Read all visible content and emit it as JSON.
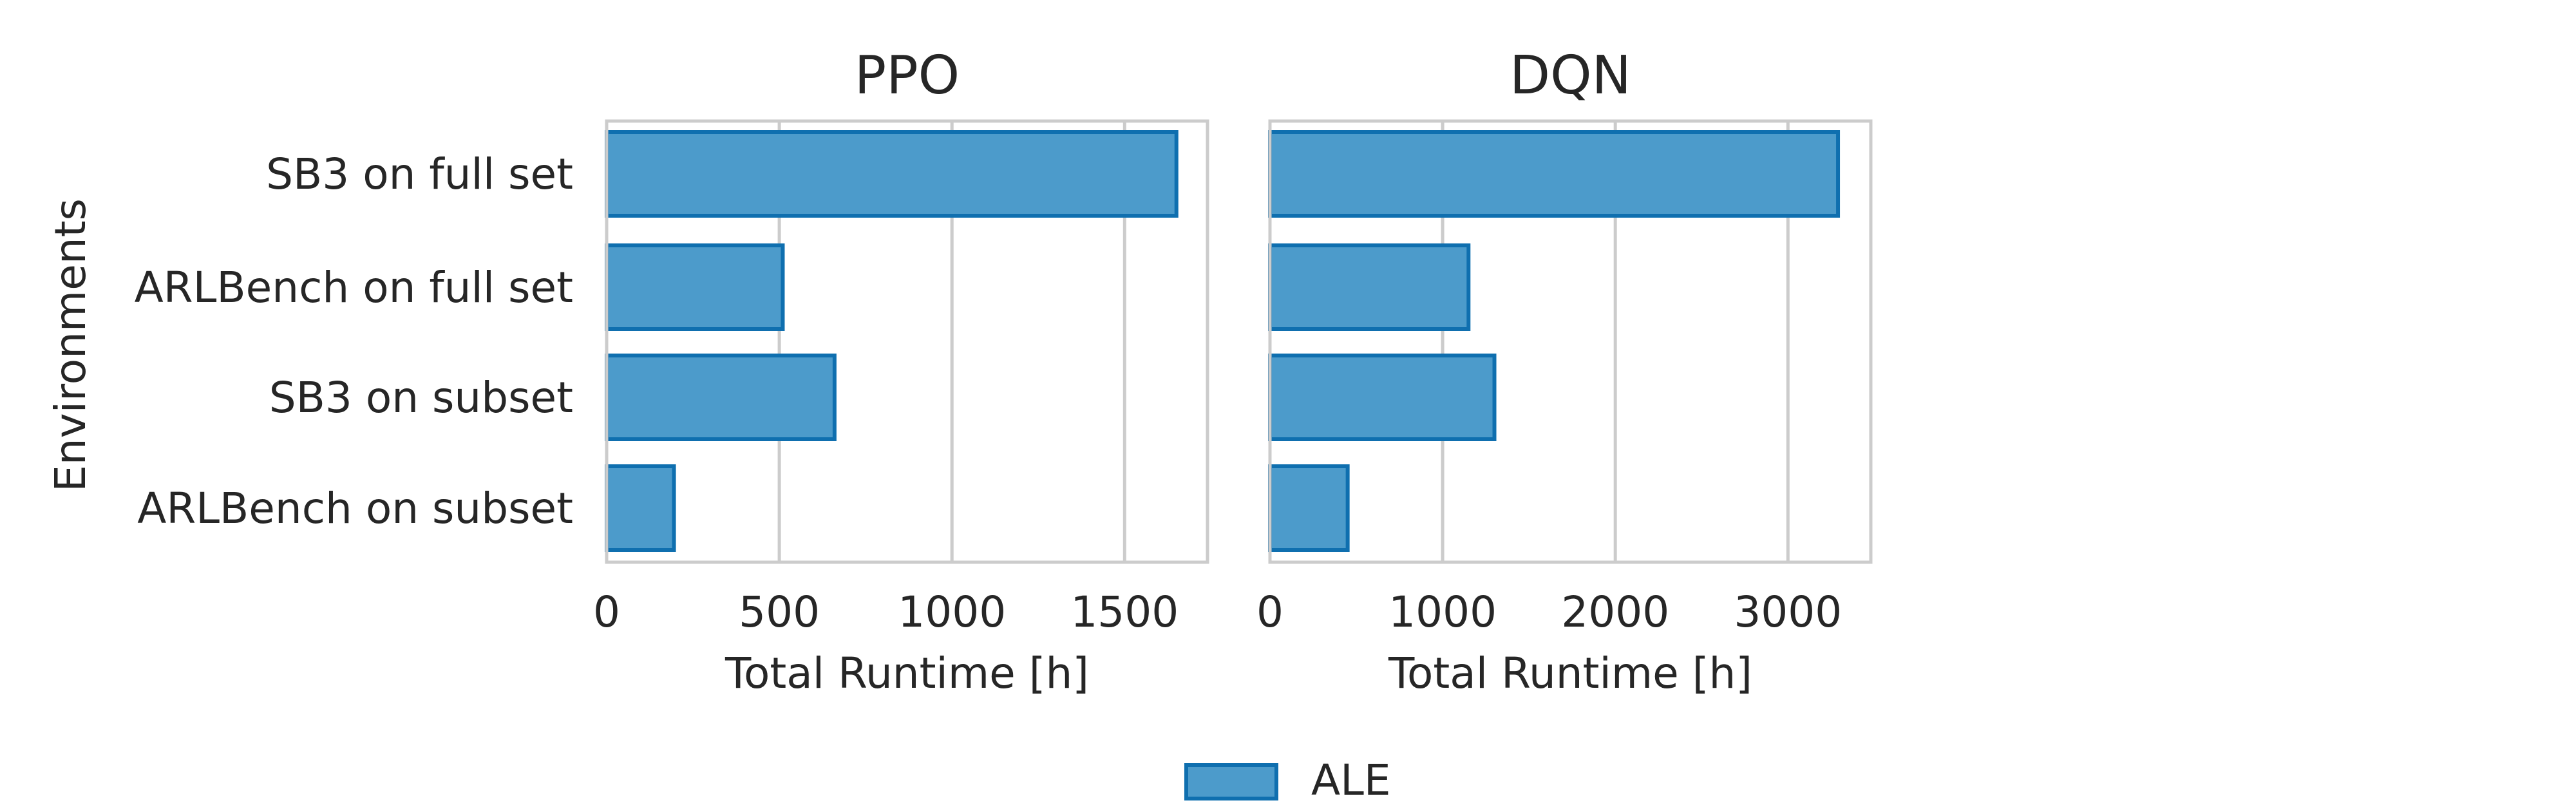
{
  "chart_data": [
    {
      "type": "bar",
      "orientation": "horizontal",
      "title": "PPO",
      "xlabel": "Total Runtime [h]",
      "ylabel": "Environments",
      "categories": [
        "SB3 on full set",
        "ARLBench on full set",
        "SB3 on subset",
        "ARLBench on subset"
      ],
      "series": [
        {
          "name": "ALE",
          "values": [
            1650,
            510,
            660,
            195
          ]
        }
      ],
      "xlim": [
        0,
        1740
      ],
      "xticks": [
        0,
        500,
        1000,
        1500
      ],
      "grid": true
    },
    {
      "type": "bar",
      "orientation": "horizontal",
      "title": "DQN",
      "xlabel": "Total Runtime [h]",
      "ylabel": "",
      "categories": [
        "SB3 on full set",
        "ARLBench on full set",
        "SB3 on subset",
        "ARLBench on subset"
      ],
      "series": [
        {
          "name": "ALE",
          "values": [
            3290,
            1150,
            1300,
            450
          ]
        }
      ],
      "xlim": [
        0,
        3480
      ],
      "xticks": [
        0,
        1000,
        2000,
        3000
      ],
      "grid": true
    }
  ],
  "legend": {
    "label": "ALE",
    "position": "bottom-center"
  },
  "colors": {
    "bar_fill": "#4c9bcb",
    "bar_edge": "#0f6faf"
  }
}
